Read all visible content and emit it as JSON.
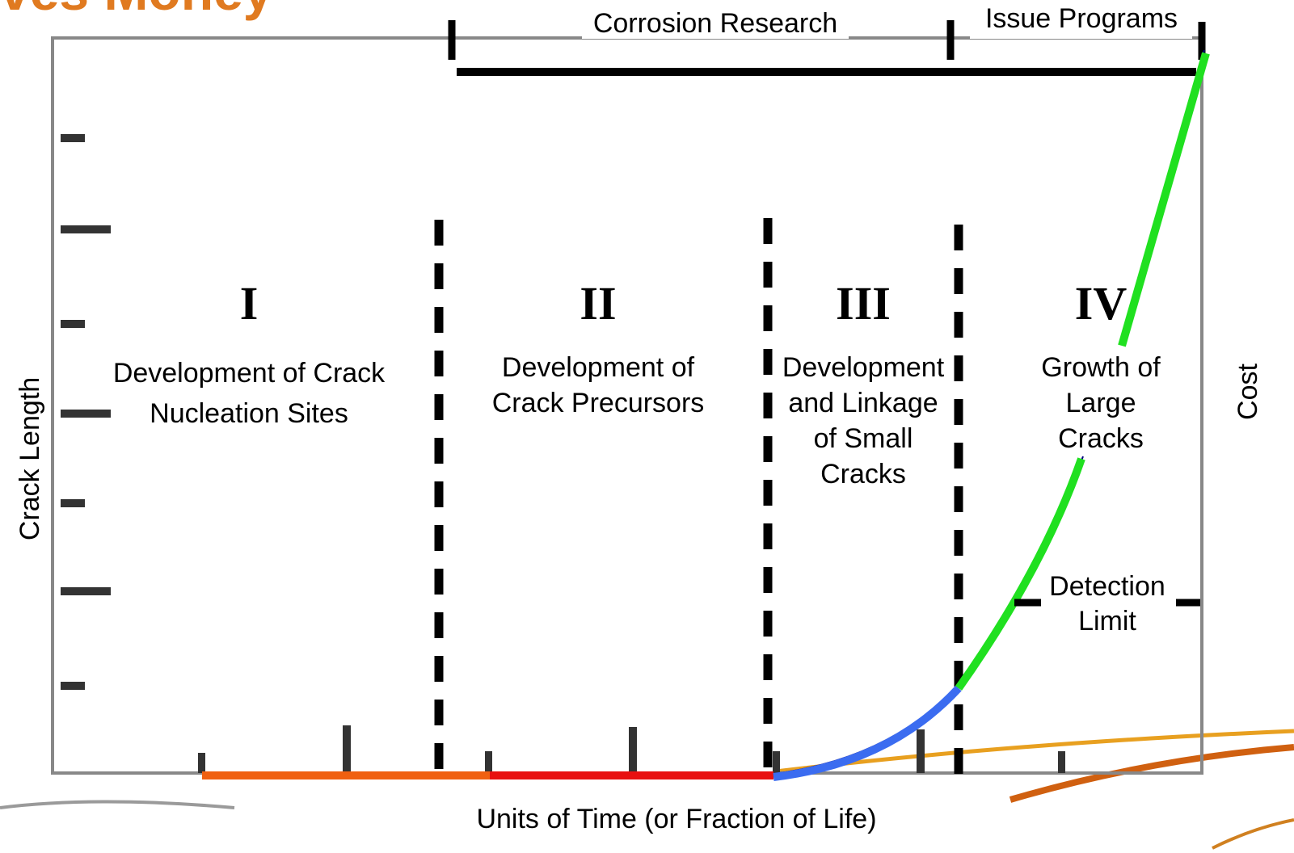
{
  "title": "ves Money",
  "programs": [
    "Corrosion Research",
    "Issue Programs"
  ],
  "y_label": "Crack Length",
  "y2_label": "Cost",
  "x_label": "Units of Time (or Fraction of Life)",
  "stages": [
    {
      "numeral": "I",
      "lines": [
        "Development of Crack",
        "Nucleation Sites"
      ]
    },
    {
      "numeral": "II",
      "lines": [
        "Development of",
        "Crack Precursors"
      ]
    },
    {
      "numeral": "III",
      "lines": [
        "Development",
        "and Linkage",
        "of Small",
        "Cracks"
      ]
    },
    {
      "numeral": "IV",
      "lines": [
        "Growth of",
        "Large",
        "Cracks"
      ]
    }
  ],
  "detection_limit": [
    "Detection",
    "Limit"
  ]
}
